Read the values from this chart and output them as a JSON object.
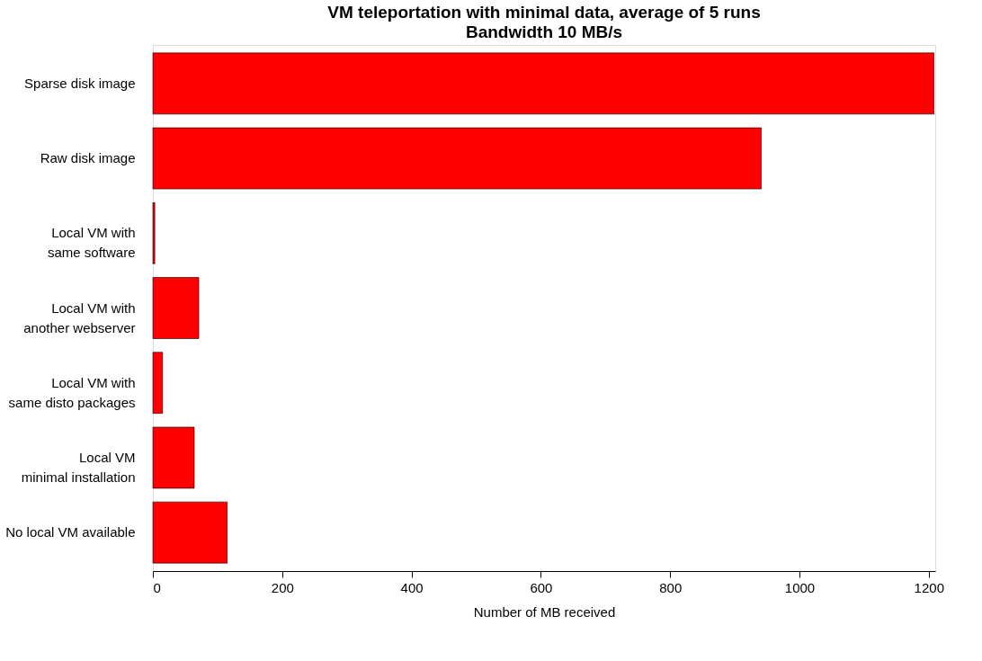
{
  "chart_data": {
    "type": "bar",
    "orientation": "horizontal",
    "title": "VM teleportation with minimal data, average of 5 runs",
    "subtitle": "Bandwidth 10 MB/s",
    "xlabel": "Number of MB received",
    "categories": [
      "Sparse disk image",
      "Raw disk image",
      "Local VM with\nsame software",
      "Local VM with\nanother webserver",
      "Local VM  with\nsame disto packages",
      "Local VM\nminimal installation",
      "No local VM available"
    ],
    "values": [
      1208,
      941,
      3,
      71,
      15,
      64,
      115
    ],
    "color": "#ff0000",
    "xlim": [
      0,
      1210
    ],
    "xticks": [
      0,
      200,
      400,
      600,
      800,
      1000,
      1200
    ],
    "grid": false
  }
}
